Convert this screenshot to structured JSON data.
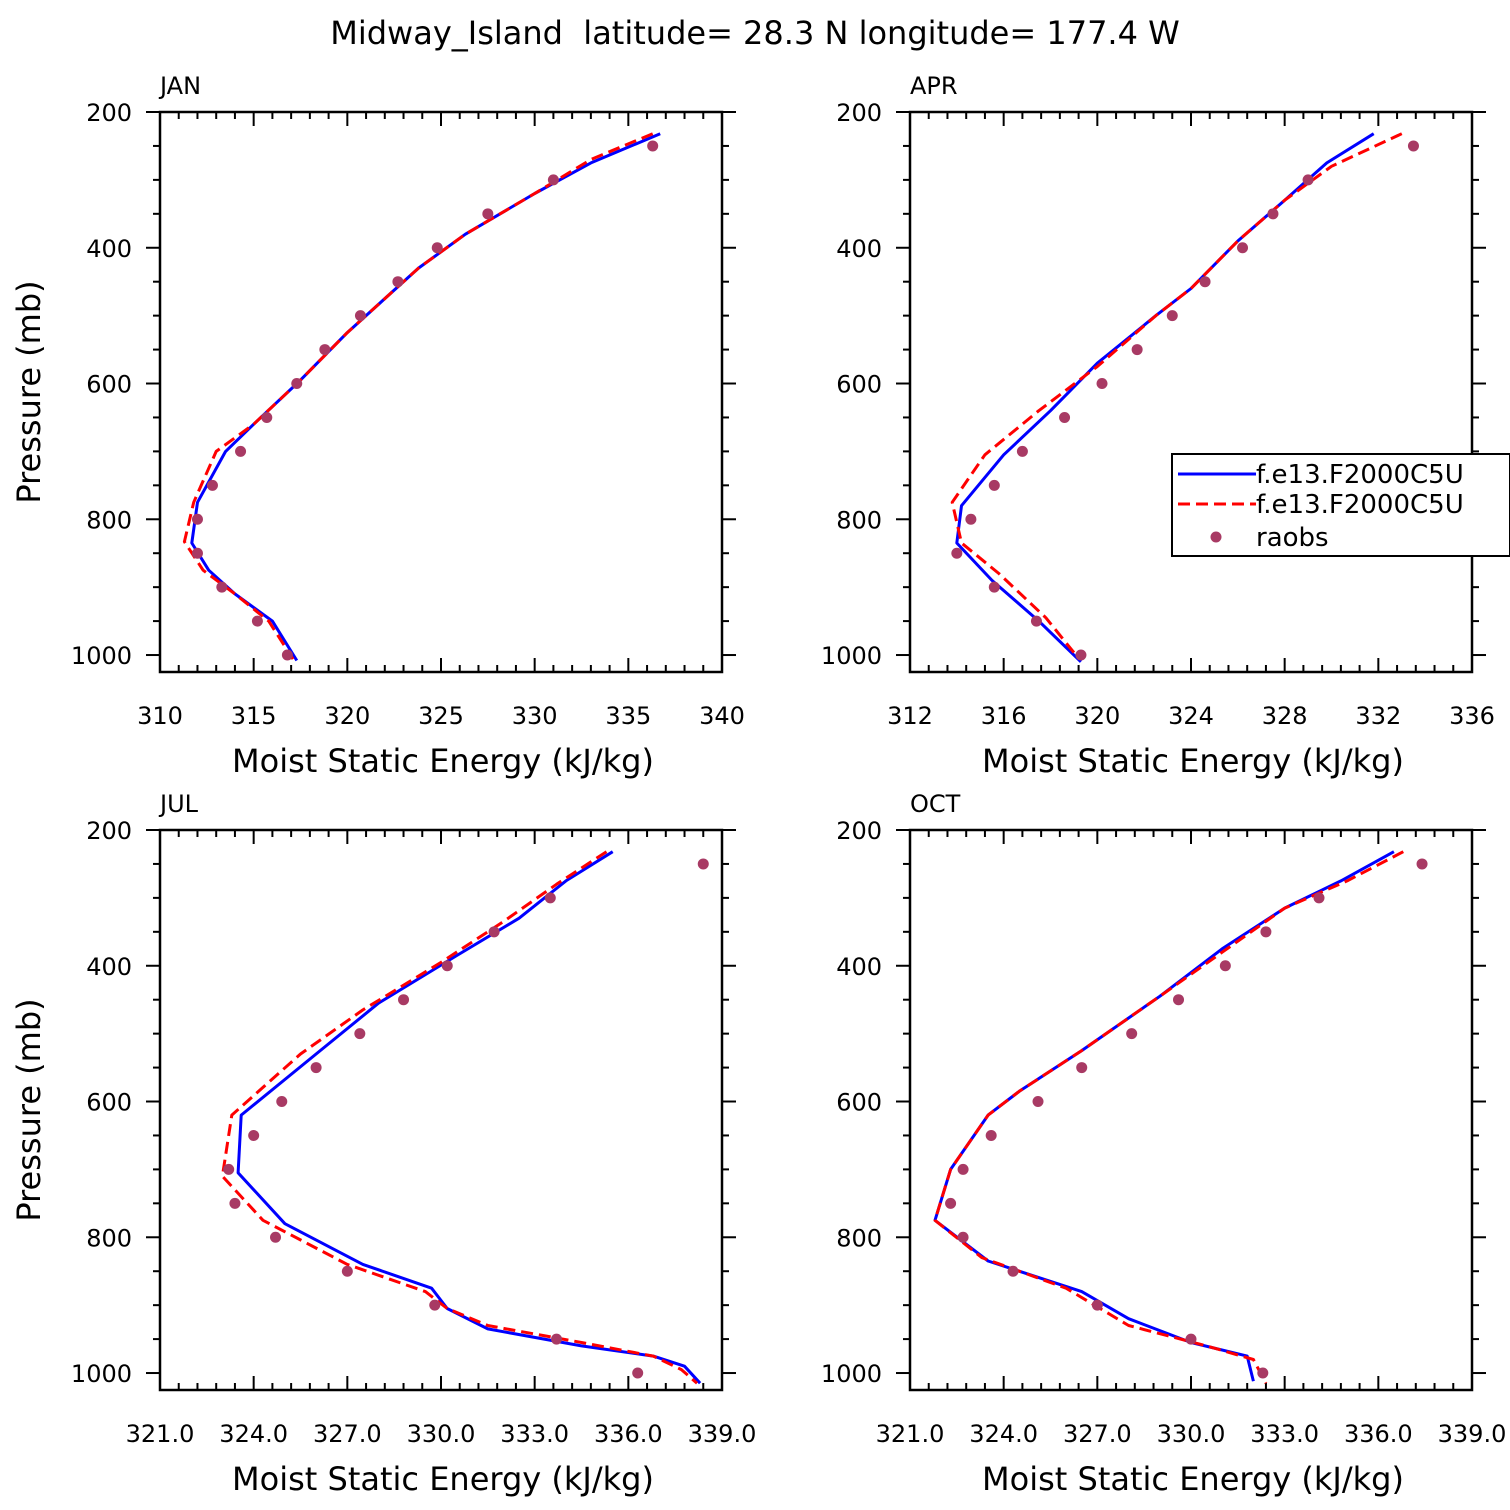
{
  "figure": {
    "title": "Midway_Island  latitude= 28.3 N longitude= 177.4 W",
    "colors": {
      "model1": "#0000ff",
      "model2": "#ff0000",
      "obs": "#a83a64",
      "axis": "#000000"
    }
  },
  "legend": {
    "entries": [
      {
        "label": "f.e13.F2000C5U",
        "style": "solid",
        "color": "#0000ff"
      },
      {
        "label": "f.e13.F2000C5U",
        "style": "dashed",
        "color": "#ff0000"
      },
      {
        "label": "raobs",
        "style": "dot",
        "color": "#a83a64"
      }
    ]
  },
  "chart_data": [
    {
      "type": "line",
      "title": "JAN",
      "xlabel": "Moist Static Energy (kJ/kg)",
      "ylabel": "Pressure (mb)",
      "xlim": [
        310,
        340
      ],
      "ylim": [
        200,
        1000
      ],
      "xticks": [
        "310",
        "315",
        "320",
        "325",
        "330",
        "335",
        "340"
      ],
      "yticks": [
        "200",
        "400",
        "600",
        "800",
        "1000"
      ],
      "series": [
        {
          "name": "f.e13.F2000C5U",
          "style": "solid",
          "x": [
            336.7,
            333.0,
            330.0,
            326.3,
            323.8,
            320.0,
            317.5,
            315.0,
            313.5,
            312.0,
            311.7,
            312.6,
            314.0,
            316.0,
            317.3
          ],
          "y": [
            232,
            275,
            320,
            380,
            430,
            525,
            595,
            660,
            700,
            775,
            835,
            875,
            910,
            950,
            1008
          ]
        },
        {
          "name": "f.e13.F2000C5U",
          "style": "dashed",
          "x": [
            336.3,
            333.0,
            330.0,
            326.3,
            323.8,
            320.0,
            317.5,
            315.0,
            313.0,
            311.8,
            311.3,
            312.3,
            314.0,
            315.8,
            317.1
          ],
          "y": [
            232,
            270,
            320,
            380,
            430,
            525,
            595,
            660,
            700,
            775,
            833,
            875,
            910,
            950,
            1006
          ]
        },
        {
          "name": "raobs",
          "style": "dot",
          "x": [
            336.3,
            331.0,
            327.5,
            324.8,
            322.7,
            320.7,
            318.8,
            317.3,
            315.7,
            314.3,
            312.8,
            312.0,
            312.0,
            313.3,
            315.2,
            316.8
          ],
          "y": [
            250,
            300,
            350,
            400,
            450,
            500,
            550,
            600,
            650,
            700,
            750,
            800,
            850,
            900,
            950,
            1000
          ]
        }
      ]
    },
    {
      "type": "line",
      "title": "APR",
      "xlabel": "Moist Static Energy (kJ/kg)",
      "ylabel": "",
      "xlim": [
        312,
        336
      ],
      "ylim": [
        200,
        1000
      ],
      "xticks": [
        "312",
        "316",
        "320",
        "324",
        "328",
        "332",
        "336"
      ],
      "yticks": [
        "200",
        "400",
        "600",
        "800",
        "1000"
      ],
      "series": [
        {
          "name": "f.e13.F2000C5U",
          "style": "solid",
          "x": [
            331.8,
            329.8,
            328.0,
            326.0,
            324.0,
            322.5,
            320.0,
            318.0,
            316.0,
            314.2,
            314.0,
            315.5,
            317.5,
            319.3
          ],
          "y": [
            232,
            275,
            330,
            390,
            460,
            500,
            570,
            640,
            705,
            780,
            835,
            890,
            950,
            1010
          ]
        },
        {
          "name": "f.e13.F2000C5U",
          "style": "dashed",
          "x": [
            333.0,
            330.0,
            328.0,
            326.0,
            324.0,
            322.5,
            320.0,
            317.5,
            315.2,
            313.8,
            314.2,
            315.8,
            317.8,
            319.2
          ],
          "y": [
            232,
            280,
            330,
            390,
            460,
            500,
            575,
            640,
            705,
            775,
            835,
            880,
            945,
            1005
          ]
        },
        {
          "name": "raobs",
          "style": "dot",
          "x": [
            333.5,
            329.0,
            327.5,
            326.2,
            324.6,
            323.2,
            321.7,
            320.2,
            318.6,
            316.8,
            315.6,
            314.6,
            314.0,
            315.6,
            317.4,
            319.3
          ],
          "y": [
            250,
            300,
            350,
            400,
            450,
            500,
            550,
            600,
            650,
            700,
            750,
            800,
            850,
            900,
            950,
            1000
          ]
        }
      ]
    },
    {
      "type": "line",
      "title": "JUL",
      "xlabel": "Moist Static Energy (kJ/kg)",
      "ylabel": "Pressure (mb)",
      "xlim": [
        321,
        339
      ],
      "ylim": [
        200,
        1000
      ],
      "xticks": [
        "321.0",
        "324.0",
        "327.0",
        "330.0",
        "333.0",
        "336.0",
        "339.0"
      ],
      "yticks": [
        "200",
        "400",
        "600",
        "800",
        "1000"
      ],
      "series": [
        {
          "name": "f.e13.F2000C5U",
          "style": "solid",
          "x": [
            335.5,
            334.0,
            332.5,
            330.5,
            328.0,
            326.0,
            323.6,
            323.5,
            325.0,
            327.5,
            329.7,
            330.2,
            331.5,
            334.5,
            336.8,
            337.8,
            338.3
          ],
          "y": [
            232,
            275,
            330,
            385,
            455,
            530,
            620,
            705,
            780,
            840,
            875,
            905,
            935,
            960,
            975,
            990,
            1015
          ]
        },
        {
          "name": "f.e13.F2000C5U",
          "style": "dashed",
          "x": [
            335.3,
            333.7,
            332.0,
            330.0,
            327.5,
            325.5,
            323.3,
            323.0,
            324.3,
            327.0,
            329.5,
            330.2,
            331.5,
            334.5,
            336.8,
            337.7,
            338.2
          ],
          "y": [
            232,
            280,
            335,
            395,
            465,
            530,
            620,
            710,
            775,
            840,
            880,
            905,
            930,
            955,
            975,
            995,
            1015
          ]
        },
        {
          "name": "raobs",
          "style": "dot",
          "x": [
            338.4,
            333.5,
            331.7,
            330.2,
            328.8,
            327.4,
            326.0,
            324.9,
            324.0,
            323.2,
            323.4,
            324.7,
            327.0,
            329.8,
            333.7,
            336.3
          ],
          "y": [
            250,
            300,
            350,
            400,
            450,
            500,
            550,
            600,
            650,
            700,
            750,
            800,
            850,
            900,
            950,
            1000
          ]
        }
      ]
    },
    {
      "type": "line",
      "title": "OCT",
      "xlabel": "Moist Static Energy (kJ/kg)",
      "ylabel": "",
      "xlim": [
        321,
        339
      ],
      "ylim": [
        200,
        1000
      ],
      "xticks": [
        "321.0",
        "324.0",
        "327.0",
        "330.0",
        "333.0",
        "336.0",
        "339.0"
      ],
      "yticks": [
        "200",
        "400",
        "600",
        "800",
        "1000"
      ],
      "series": [
        {
          "name": "f.e13.F2000C5U",
          "style": "solid",
          "x": [
            336.5,
            334.8,
            333.0,
            331.0,
            329.0,
            326.5,
            324.5,
            323.5,
            322.3,
            321.8,
            323.5,
            326.5,
            328.0,
            330.0,
            331.8,
            332.0
          ],
          "y": [
            232,
            275,
            315,
            375,
            445,
            525,
            585,
            620,
            700,
            775,
            835,
            880,
            920,
            955,
            975,
            1012
          ]
        },
        {
          "name": "f.e13.F2000C5U",
          "style": "dashed",
          "x": [
            336.8,
            335.0,
            333.0,
            331.0,
            329.0,
            326.5,
            324.5,
            323.5,
            322.3,
            321.8,
            323.3,
            326.0,
            328.0,
            330.5,
            332.0,
            332.4
          ],
          "y": [
            232,
            275,
            315,
            380,
            445,
            525,
            585,
            620,
            700,
            775,
            830,
            875,
            930,
            960,
            980,
            1015
          ]
        },
        {
          "name": "raobs",
          "style": "dot",
          "x": [
            337.4,
            334.1,
            332.4,
            331.1,
            329.6,
            328.1,
            326.5,
            325.1,
            323.6,
            322.7,
            322.3,
            322.7,
            324.3,
            327.0,
            330.0,
            332.3
          ],
          "y": [
            250,
            300,
            350,
            400,
            450,
            500,
            550,
            600,
            650,
            700,
            750,
            800,
            850,
            900,
            950,
            1000
          ]
        }
      ]
    }
  ]
}
